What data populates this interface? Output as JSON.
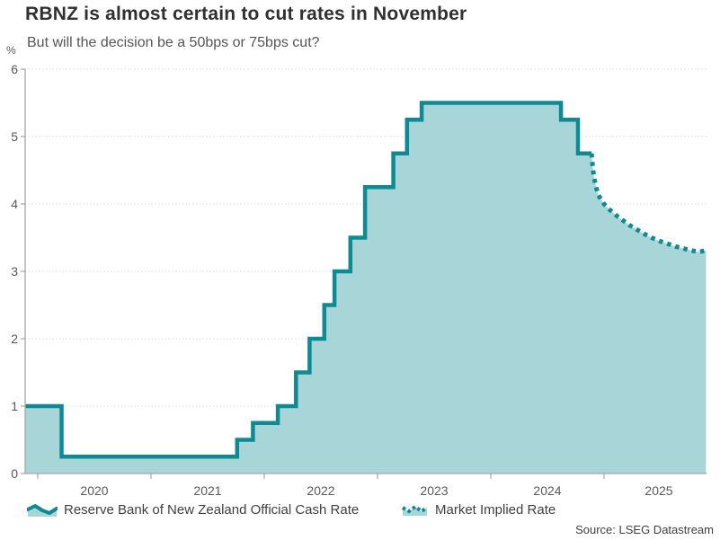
{
  "header": {
    "title": "RBNZ is almost certain to cut rates in November",
    "subtitle": "But will the decision be a 50bps or 75bps cut?"
  },
  "footer": {
    "source": "Source: LSEG Datastream"
  },
  "colors": {
    "line_teal": "#0d8a94",
    "area_fill": "#a8d6d8",
    "grid": "#d9d9d9",
    "axis": "#a6a6a6"
  },
  "chart_data": {
    "type": "area",
    "title": "RBNZ is almost certain to cut rates in November",
    "subtitle": "But will the decision be a 50bps or 75bps cut?",
    "xlabel": "",
    "ylabel": "%",
    "ylim": [
      0,
      6
    ],
    "grid": "dotted-horizontal",
    "legend_position": "bottom",
    "y_tick_labels": [
      "6",
      "5",
      "4",
      "3",
      "2",
      "1",
      "0"
    ],
    "x_tick_labels": [
      "2020",
      "2021",
      "2022",
      "2023",
      "2024",
      "2025"
    ],
    "x_range": [
      2019.89,
      2025.9
    ],
    "series": [
      {
        "name": "Reserve Bank of New Zealand Official Cash Rate",
        "style": "solid-step",
        "color": "#0d8a94",
        "points": [
          [
            2019.89,
            1.0
          ],
          [
            2020.21,
            0.25
          ],
          [
            2021.76,
            0.5
          ],
          [
            2021.9,
            0.75
          ],
          [
            2022.12,
            1.0
          ],
          [
            2022.28,
            1.5
          ],
          [
            2022.4,
            2.0
          ],
          [
            2022.53,
            2.5
          ],
          [
            2022.62,
            3.0
          ],
          [
            2022.76,
            3.5
          ],
          [
            2022.89,
            4.25
          ],
          [
            2023.14,
            4.75
          ],
          [
            2023.26,
            5.25
          ],
          [
            2023.39,
            5.5
          ],
          [
            2024.62,
            5.25
          ],
          [
            2024.77,
            4.75
          ],
          [
            2024.89,
            4.75
          ]
        ]
      },
      {
        "name": "Market Implied Rate",
        "style": "dotted",
        "color": "#0d8a94",
        "points": [
          [
            2024.89,
            4.75
          ],
          [
            2024.9,
            4.55
          ],
          [
            2024.91,
            4.4
          ],
          [
            2024.93,
            4.25
          ],
          [
            2024.95,
            4.13
          ],
          [
            2024.98,
            4.05
          ],
          [
            2025.0,
            4.0
          ],
          [
            2025.04,
            3.93
          ],
          [
            2025.08,
            3.87
          ],
          [
            2025.13,
            3.8
          ],
          [
            2025.18,
            3.74
          ],
          [
            2025.23,
            3.68
          ],
          [
            2025.29,
            3.62
          ],
          [
            2025.35,
            3.56
          ],
          [
            2025.42,
            3.5
          ],
          [
            2025.49,
            3.45
          ],
          [
            2025.56,
            3.41
          ],
          [
            2025.63,
            3.37
          ],
          [
            2025.7,
            3.34
          ],
          [
            2025.77,
            3.31
          ],
          [
            2025.84,
            3.29
          ],
          [
            2025.9,
            3.31
          ]
        ]
      }
    ]
  }
}
